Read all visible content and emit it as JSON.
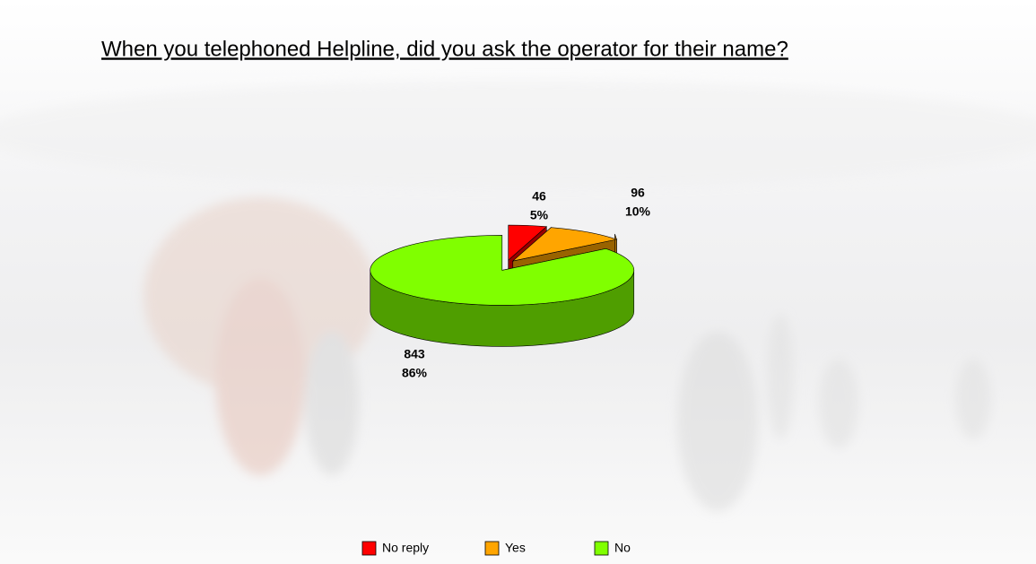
{
  "chart_data": {
    "type": "pie3d",
    "title": "When you telephoned Helpline, did you ask the operator for their name?",
    "categories": [
      "No reply",
      "Yes",
      "No"
    ],
    "values": [
      46,
      96,
      843
    ],
    "percent_labels": [
      "5%",
      "10%",
      "86%"
    ],
    "colors": [
      "#ff0000",
      "#ffa500",
      "#80ff00"
    ],
    "legend": "bottom"
  }
}
